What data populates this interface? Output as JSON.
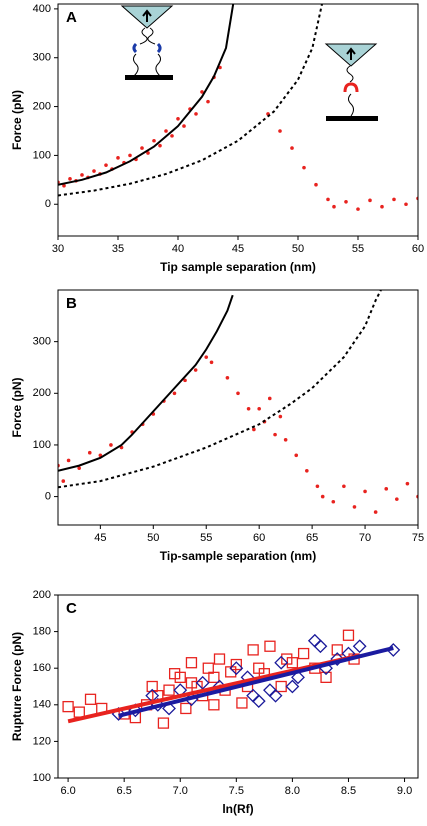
{
  "chart_data": [
    {
      "type": "scatter",
      "label": "A",
      "xlabel": "Tip sample separation (nm)",
      "ylabel": "Force (pN)",
      "xlim": [
        30,
        60
      ],
      "xticks": [
        30,
        35,
        40,
        45,
        50,
        55,
        60
      ],
      "ylim": [
        -65,
        410
      ],
      "yticks": [
        0,
        100,
        200,
        300,
        400
      ],
      "series": [
        {
          "color": "#e8231f",
          "style": "points",
          "marker": "circle",
          "x": [
            30,
            30.5,
            31,
            31.5,
            32,
            32.5,
            33,
            33.5,
            34,
            34.5,
            35,
            35.5,
            36,
            36.5,
            37,
            37.5,
            38,
            38.5,
            39,
            39.5,
            40,
            40.5,
            41,
            41.5,
            42,
            42.5,
            43,
            43.5,
            47.5,
            48.5,
            49.5,
            50.5,
            51.5,
            52.5,
            53,
            54,
            55,
            56,
            57,
            58,
            59,
            60
          ],
          "values": [
            45,
            38,
            52,
            48,
            60,
            55,
            68,
            62,
            80,
            72,
            95,
            85,
            100,
            92,
            115,
            105,
            130,
            120,
            150,
            140,
            175,
            160,
            195,
            185,
            230,
            210,
            260,
            280,
            185,
            150,
            115,
            75,
            40,
            10,
            -5,
            5,
            -10,
            8,
            -5,
            10,
            0,
            12
          ]
        },
        {
          "color": "#000000",
          "style": "solid",
          "x": [
            30,
            32,
            34,
            36,
            38,
            40,
            42,
            43,
            44,
            44.6
          ],
          "values": [
            40,
            50,
            65,
            88,
            118,
            160,
            220,
            262,
            320,
            410
          ]
        },
        {
          "color": "#000000",
          "style": "dashed",
          "x": [
            30,
            33,
            36,
            39,
            42,
            45,
            48,
            50,
            51.2,
            52
          ],
          "values": [
            18,
            28,
            42,
            62,
            90,
            130,
            190,
            255,
            320,
            410
          ]
        }
      ]
    },
    {
      "type": "scatter",
      "label": "B",
      "xlabel": "Tip-sample separation (nm)",
      "ylabel": "Force (pN)",
      "xlim": [
        41,
        75
      ],
      "xticks": [
        45,
        50,
        55,
        60,
        65,
        70,
        75
      ],
      "ylim": [
        -55,
        400
      ],
      "yticks": [
        0,
        100,
        200,
        300
      ],
      "series": [
        {
          "color": "#e8231f",
          "style": "points",
          "marker": "circle",
          "x": [
            41,
            41.5,
            42,
            43,
            44,
            45,
            46,
            47,
            48,
            49,
            50,
            51,
            52,
            53,
            54,
            55,
            55.5,
            57,
            58,
            59,
            59.5,
            60,
            60.5,
            61,
            61.5,
            62,
            62.5,
            63.5,
            64.5,
            65.5,
            66,
            67,
            68,
            69,
            70,
            71,
            72,
            73,
            74,
            75
          ],
          "values": [
            60,
            30,
            70,
            55,
            85,
            80,
            100,
            95,
            125,
            140,
            160,
            185,
            200,
            225,
            245,
            270,
            260,
            230,
            200,
            170,
            130,
            170,
            145,
            190,
            120,
            155,
            110,
            80,
            50,
            20,
            0,
            -10,
            20,
            -20,
            10,
            -30,
            15,
            -5,
            25,
            0
          ]
        },
        {
          "color": "#000000",
          "style": "solid",
          "x": [
            41,
            43,
            45,
            47,
            48,
            50,
            52,
            54,
            55,
            56,
            57,
            57.5
          ],
          "values": [
            50,
            60,
            75,
            100,
            120,
            165,
            210,
            255,
            285,
            320,
            360,
            390
          ]
        },
        {
          "color": "#000000",
          "style": "dashed",
          "x": [
            41,
            45,
            50,
            55,
            60,
            63,
            65,
            68,
            70,
            71,
            71.5
          ],
          "values": [
            18,
            30,
            58,
            95,
            140,
            180,
            210,
            270,
            330,
            380,
            400
          ]
        }
      ]
    },
    {
      "type": "scatter",
      "label": "C",
      "xlabel": "ln(Rf)",
      "ylabel": "Rupture Force (pN)",
      "xlim": [
        5.91,
        9.12
      ],
      "xticks": [
        {
          "value": 6,
          "label": "6.0"
        },
        {
          "value": 6.5,
          "label": "6.5"
        },
        {
          "value": 7,
          "label": "7.0"
        },
        {
          "value": 7.5,
          "label": "7.5"
        },
        {
          "value": 8,
          "label": "8.0"
        },
        {
          "value": 8.5,
          "label": "8.5"
        },
        {
          "value": 9,
          "label": "9.0"
        }
      ],
      "ylim": [
        100,
        200
      ],
      "yticks": [
        100,
        120,
        140,
        160,
        180,
        200
      ],
      "series": [
        {
          "color": "#e8231f",
          "style": "points",
          "marker": "square",
          "x": [
            6.0,
            6.1,
            6.2,
            6.3,
            6.5,
            6.6,
            6.7,
            6.75,
            6.8,
            6.85,
            6.9,
            6.95,
            7.0,
            7.05,
            7.1,
            7.1,
            7.15,
            7.2,
            7.25,
            7.3,
            7.3,
            7.35,
            7.4,
            7.45,
            7.5,
            7.55,
            7.6,
            7.65,
            7.7,
            7.75,
            7.8,
            7.9,
            7.95,
            8.0,
            8.1,
            8.2,
            8.3,
            8.4,
            8.5,
            8.55
          ],
          "values": [
            139,
            136,
            143,
            138,
            135,
            133,
            140,
            150,
            145,
            130,
            148,
            157,
            155,
            138,
            152,
            163,
            150,
            145,
            160,
            140,
            155,
            165,
            148,
            158,
            162,
            141,
            150,
            170,
            160,
            157,
            172,
            150,
            165,
            163,
            168,
            160,
            155,
            170,
            178,
            165
          ]
        },
        {
          "color": "#1a1a9a",
          "style": "points",
          "marker": "diamond",
          "x": [
            6.45,
            6.6,
            6.75,
            6.8,
            6.9,
            7.0,
            7.1,
            7.2,
            7.35,
            7.5,
            7.6,
            7.65,
            7.7,
            7.8,
            7.85,
            7.9,
            8.0,
            8.05,
            8.2,
            8.25,
            8.3,
            8.4,
            8.5,
            8.6,
            8.9
          ],
          "values": [
            135,
            137,
            145,
            140,
            138,
            148,
            143,
            152,
            150,
            160,
            155,
            145,
            142,
            148,
            145,
            163,
            150,
            155,
            175,
            172,
            160,
            165,
            168,
            172,
            170
          ]
        },
        {
          "color": "#e8231f",
          "style": "solid",
          "width": 4,
          "x": [
            6.0,
            8.6
          ],
          "values": [
            131,
            167
          ]
        },
        {
          "color": "#1b1ba0",
          "style": "solid",
          "width": 4,
          "x": [
            6.45,
            8.9
          ],
          "values": [
            134,
            171
          ]
        }
      ]
    }
  ]
}
